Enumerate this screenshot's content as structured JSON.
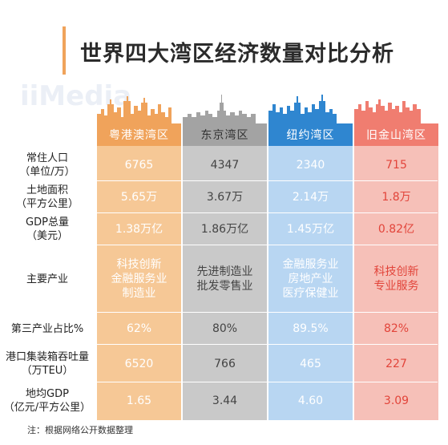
{
  "title": "世界四大湾区经济数量对比分析",
  "watermark": "iiMedia",
  "footnote": "注：根据网络公开数据整理",
  "colors": {
    "accent": "#f0a35b",
    "col_bg": [
      "#f6c896",
      "#c9c9c9",
      "#b8d6f2",
      "#f6c0b8"
    ],
    "header_bg": [
      "#f0a35b",
      "#a3a3a3",
      "#2f86d0",
      "#f07d70"
    ],
    "text": [
      "#ffffff",
      "#444444",
      "#ffffff",
      "#e2443a"
    ]
  },
  "columns": [
    {
      "name": "粤港澳湾区",
      "icon": "skyline-guangdong-icon"
    },
    {
      "name": "东京湾区",
      "icon": "skyline-tokyo-icon"
    },
    {
      "name": "纽约湾区",
      "icon": "skyline-newyork-icon"
    },
    {
      "name": "旧金山湾区",
      "icon": "skyline-sanfrancisco-icon"
    }
  ],
  "rows": [
    {
      "label": "常住人口\n（单位/万）",
      "values": [
        "6765",
        "4347",
        "2340",
        "715"
      ]
    },
    {
      "label": "土地面积\n（平方公里）",
      "values": [
        "5.65万",
        "3.67万",
        "2.14万",
        "1.8万"
      ]
    },
    {
      "label": "GDP总量\n（美元）",
      "values": [
        "1.38万亿",
        "1.86万亿",
        "1.45万亿",
        "0.82亿"
      ]
    },
    {
      "label": "主要产业",
      "values": [
        "科技创新\n金融服务业\n制造业",
        "先进制造业\n批发零售业",
        "金融服务业\n房地产业\n医疗保健业",
        "科技创新\n专业服务"
      ]
    },
    {
      "label": "第三产业占比%",
      "values": [
        "62%",
        "80%",
        "89.5%",
        "82%"
      ]
    },
    {
      "label": "港口集装箱吞吐量\n（万TEU）",
      "values": [
        "6520",
        "766",
        "465",
        "227"
      ]
    },
    {
      "label": "地均GDP\n（亿元/平方公里）",
      "values": [
        "1.65",
        "3.44",
        "4.60",
        "3.09"
      ]
    }
  ]
}
